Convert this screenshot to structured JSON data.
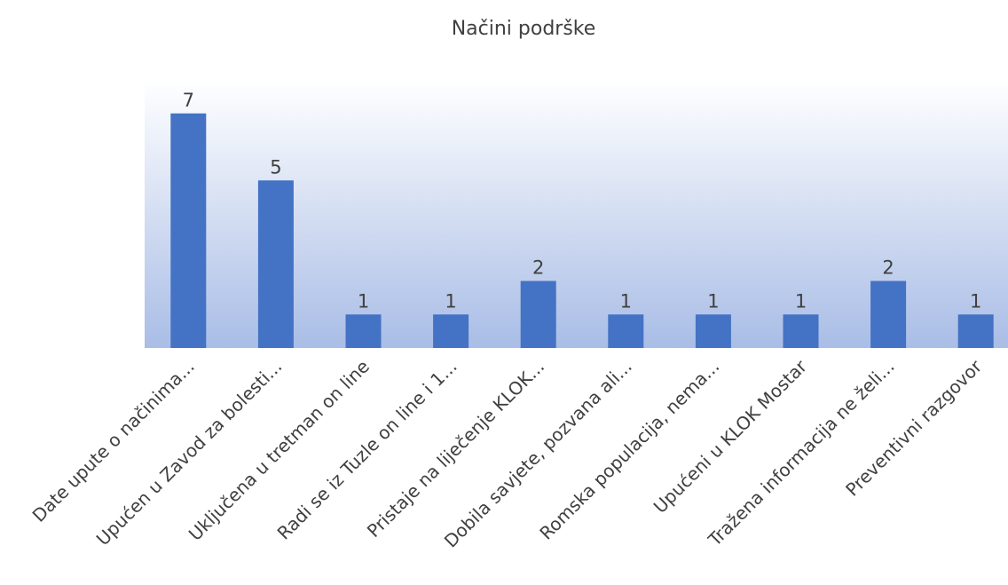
{
  "chart_data": {
    "type": "bar",
    "title": "Načini podrške",
    "categories": [
      "Date upute o načinima...",
      "Upućen u Zavod za bolesti...",
      "Uključena u tretman on line",
      "Radi se iz Tuzle on line i 1...",
      "Pristaje na liječenje KLOK...",
      "Dobila savjete, pozvana ali...",
      "Romska populacija, nema...",
      "Upućeni u KLOK Mostar",
      "Tražena informacija ne želi...",
      "Preventivni razgovor"
    ],
    "values": [
      7,
      5,
      1,
      1,
      2,
      1,
      1,
      1,
      2,
      1
    ],
    "color": "#4472c4",
    "ylim": [
      0,
      8
    ],
    "data_labels": true
  }
}
